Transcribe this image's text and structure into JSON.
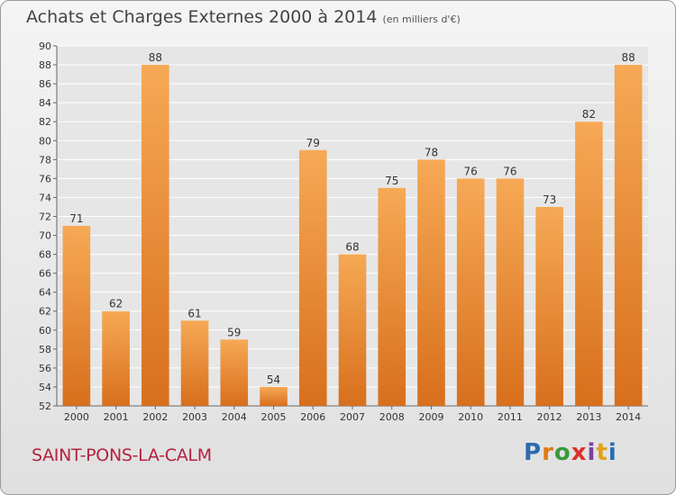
{
  "header": {
    "title": "Achats et Charges Externes 2000 à 2014",
    "subtitle": "(en milliers d'€)"
  },
  "footer": {
    "commune": "SAINT-PONS-LA-CALM",
    "logo": [
      "P",
      "r",
      "o",
      "x",
      "i",
      "t",
      "i"
    ],
    "logo_colors": [
      "#2b6cb0",
      "#e07b1a",
      "#3a9a3a",
      "#d8322b",
      "#7a3fa0",
      "#e0a21a",
      "#2b6cb0"
    ]
  },
  "colors": {
    "bar_top": "#f6a955",
    "bar_bottom": "#d86f1c",
    "grid": "#ffffff",
    "text": "#333333"
  },
  "chart_data": {
    "type": "bar",
    "title": "Achats et Charges Externes 2000 à 2014",
    "subtitle": "(en milliers d'€)",
    "categories": [
      "2000",
      "2001",
      "2002",
      "2003",
      "2004",
      "2005",
      "2006",
      "2007",
      "2008",
      "2009",
      "2010",
      "2011",
      "2012",
      "2013",
      "2014"
    ],
    "values": [
      71,
      62,
      88,
      61,
      59,
      54,
      79,
      68,
      75,
      78,
      76,
      76,
      73,
      82,
      88
    ],
    "ylim": [
      52,
      90
    ],
    "yticks": [
      52,
      54,
      56,
      58,
      60,
      62,
      64,
      66,
      68,
      70,
      72,
      74,
      76,
      78,
      80,
      82,
      84,
      86,
      88,
      90
    ],
    "grid": true,
    "xlabel": "",
    "ylabel": ""
  }
}
